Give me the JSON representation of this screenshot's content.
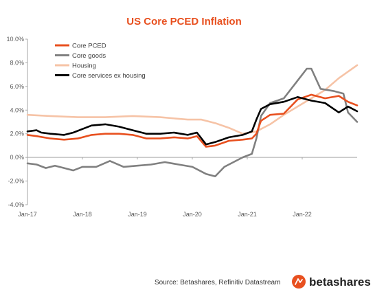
{
  "chart_data": {
    "type": "line",
    "title": "US Core PCED Inflation",
    "xlabel": "",
    "ylabel": "",
    "ylim": [
      -4,
      10
    ],
    "x_range": [
      "2017-01",
      "2023-01"
    ],
    "y_tick_labels": [
      "-4.0%",
      "-2.0%",
      "0.0%",
      "2.0%",
      "4.0%",
      "6.0%",
      "8.0%",
      "10.0%"
    ],
    "x_tick_labels": [
      "Jan-17",
      "Jan-18",
      "Jan-19",
      "Jan-20",
      "Jan-21",
      "Jan-22"
    ],
    "grid": false,
    "legend_position": "top-left",
    "series": [
      {
        "name": "Core PCED",
        "color": "#E8501F",
        "points": [
          [
            "2017-01",
            1.9
          ],
          [
            "2017-03",
            1.8
          ],
          [
            "2017-06",
            1.6
          ],
          [
            "2017-09",
            1.5
          ],
          [
            "2017-12",
            1.6
          ],
          [
            "2018-03",
            1.9
          ],
          [
            "2018-06",
            2.0
          ],
          [
            "2018-09",
            2.0
          ],
          [
            "2018-12",
            1.9
          ],
          [
            "2019-03",
            1.6
          ],
          [
            "2019-06",
            1.6
          ],
          [
            "2019-09",
            1.7
          ],
          [
            "2019-12",
            1.6
          ],
          [
            "2020-02",
            1.8
          ],
          [
            "2020-04",
            0.9
          ],
          [
            "2020-06",
            1.0
          ],
          [
            "2020-09",
            1.4
          ],
          [
            "2020-12",
            1.5
          ],
          [
            "2021-02",
            1.6
          ],
          [
            "2021-03",
            2.0
          ],
          [
            "2021-04",
            3.1
          ],
          [
            "2021-06",
            3.6
          ],
          [
            "2021-09",
            3.7
          ],
          [
            "2021-12",
            4.9
          ],
          [
            "2022-03",
            5.3
          ],
          [
            "2022-06",
            5.0
          ],
          [
            "2022-09",
            5.2
          ],
          [
            "2022-11",
            4.7
          ],
          [
            "2023-01",
            4.4
          ]
        ]
      },
      {
        "name": "Core goods",
        "color": "#808080",
        "points": [
          [
            "2017-01",
            -0.5
          ],
          [
            "2017-03",
            -0.6
          ],
          [
            "2017-05",
            -0.9
          ],
          [
            "2017-07",
            -0.7
          ],
          [
            "2017-09",
            -0.9
          ],
          [
            "2017-11",
            -1.1
          ],
          [
            "2018-01",
            -0.8
          ],
          [
            "2018-04",
            -0.8
          ],
          [
            "2018-07",
            -0.3
          ],
          [
            "2018-10",
            -0.8
          ],
          [
            "2019-01",
            -0.7
          ],
          [
            "2019-04",
            -0.6
          ],
          [
            "2019-07",
            -0.4
          ],
          [
            "2019-10",
            -0.6
          ],
          [
            "2020-01",
            -0.8
          ],
          [
            "2020-04",
            -1.4
          ],
          [
            "2020-06",
            -1.6
          ],
          [
            "2020-08",
            -0.8
          ],
          [
            "2020-10",
            -0.4
          ],
          [
            "2020-12",
            0.0
          ],
          [
            "2021-02",
            0.3
          ],
          [
            "2021-03",
            1.6
          ],
          [
            "2021-04",
            3.5
          ],
          [
            "2021-06",
            4.6
          ],
          [
            "2021-09",
            5.0
          ],
          [
            "2021-12",
            6.5
          ],
          [
            "2022-02",
            7.5
          ],
          [
            "2022-03",
            7.5
          ],
          [
            "2022-05",
            5.8
          ],
          [
            "2022-08",
            5.6
          ],
          [
            "2022-10",
            5.4
          ],
          [
            "2022-11",
            3.8
          ],
          [
            "2023-01",
            3.0
          ]
        ]
      },
      {
        "name": "Housing",
        "color": "#F6C3A6",
        "points": [
          [
            "2017-01",
            3.6
          ],
          [
            "2017-06",
            3.5
          ],
          [
            "2017-12",
            3.4
          ],
          [
            "2018-06",
            3.4
          ],
          [
            "2018-12",
            3.5
          ],
          [
            "2019-06",
            3.4
          ],
          [
            "2019-12",
            3.2
          ],
          [
            "2020-03",
            3.2
          ],
          [
            "2020-06",
            2.9
          ],
          [
            "2020-09",
            2.5
          ],
          [
            "2020-12",
            2.0
          ],
          [
            "2021-03",
            2.2
          ],
          [
            "2021-06",
            2.8
          ],
          [
            "2021-09",
            3.6
          ],
          [
            "2021-12",
            4.3
          ],
          [
            "2022-03",
            5.0
          ],
          [
            "2022-06",
            5.7
          ],
          [
            "2022-09",
            6.7
          ],
          [
            "2023-01",
            7.8
          ]
        ]
      },
      {
        "name": "Core services ex housing",
        "color": "#000000",
        "points": [
          [
            "2017-01",
            2.2
          ],
          [
            "2017-03",
            2.3
          ],
          [
            "2017-04",
            2.1
          ],
          [
            "2017-06",
            2.0
          ],
          [
            "2017-09",
            1.9
          ],
          [
            "2017-11",
            2.1
          ],
          [
            "2018-01",
            2.4
          ],
          [
            "2018-03",
            2.7
          ],
          [
            "2018-06",
            2.8
          ],
          [
            "2018-09",
            2.6
          ],
          [
            "2018-12",
            2.3
          ],
          [
            "2019-03",
            2.0
          ],
          [
            "2019-06",
            2.0
          ],
          [
            "2019-09",
            2.1
          ],
          [
            "2019-12",
            1.9
          ],
          [
            "2020-02",
            2.1
          ],
          [
            "2020-04",
            1.1
          ],
          [
            "2020-06",
            1.3
          ],
          [
            "2020-09",
            1.7
          ],
          [
            "2020-12",
            1.9
          ],
          [
            "2021-02",
            2.2
          ],
          [
            "2021-03",
            3.2
          ],
          [
            "2021-04",
            4.1
          ],
          [
            "2021-06",
            4.5
          ],
          [
            "2021-09",
            4.7
          ],
          [
            "2021-12",
            5.1
          ],
          [
            "2022-03",
            4.8
          ],
          [
            "2022-06",
            4.6
          ],
          [
            "2022-09",
            3.8
          ],
          [
            "2022-11",
            4.3
          ],
          [
            "2023-01",
            3.9
          ]
        ]
      }
    ]
  },
  "footer": {
    "source": "Source: Betashares, Refinitiv Datastream",
    "brand_name": "betashares",
    "brand_color": "#E8501F",
    "brand_icon": "betashares-logo-icon"
  },
  "colors": {
    "title": "#E8501F",
    "axis": "#A6A6A6",
    "tick_text": "#595959"
  }
}
